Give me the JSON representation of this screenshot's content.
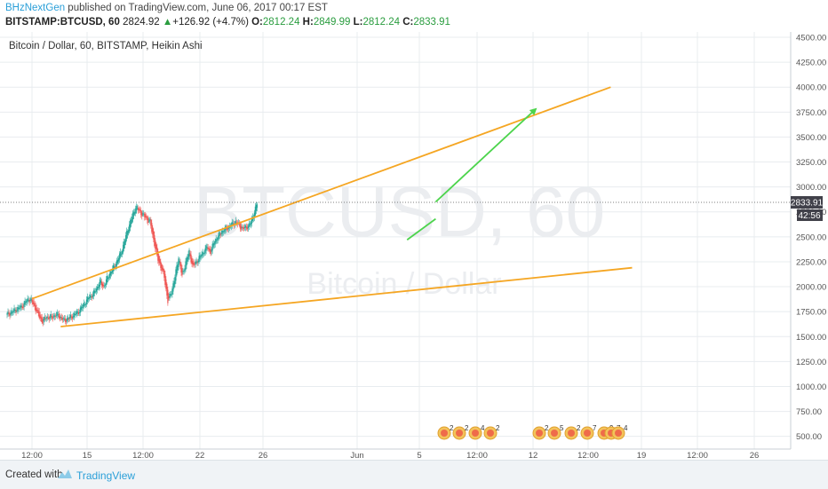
{
  "header": {
    "author": "BHzNextGen",
    "published_text": " published on TradingView.com, June 06, 2017 00:17 EST",
    "symbol": "BITSTAMP:BTCUSD, 60",
    "last": "2824.92",
    "change": "+126.92 (+4.7%)",
    "change_arrow": "▲",
    "o_label": "O:",
    "o_value": "2812.24",
    "h_label": "H:",
    "h_value": "2849.99",
    "l_label": "L:",
    "l_value": "2812.24",
    "c_label": "C:",
    "c_value": "2833.91"
  },
  "footer": {
    "created_with": "Created with",
    "brand": "TradingView"
  },
  "chart_data": {
    "type": "line",
    "title": "Bitcoin / Dollar, 60, BITSTAMP, Heikin Ashi",
    "watermark_main": "BTCUSD, 60",
    "watermark_sub": "Bitcoin / Dollar",
    "y_ticks": [
      500,
      750,
      1000,
      1250,
      1500,
      1750,
      2000,
      2250,
      2500,
      2750,
      3000,
      3250,
      3500,
      3750,
      4000,
      4250,
      4500
    ],
    "ylim": [
      400,
      4500
    ],
    "x_ticks": [
      "12:00",
      "15",
      "12:00",
      "22",
      "26",
      "Jun",
      "5",
      "12:00",
      "12",
      "12:00",
      "19",
      "12:00",
      "26"
    ],
    "price_label": "2833.91",
    "time_label": "42:56",
    "price_series": {
      "name": "BTCUSD",
      "x": [
        0,
        2,
        4,
        6,
        7,
        8,
        9,
        10,
        11,
        12,
        14,
        16,
        18,
        20,
        21,
        22,
        23,
        24,
        25,
        26,
        27,
        28,
        29,
        30,
        32,
        34,
        36,
        38,
        40,
        42,
        44,
        45,
        46,
        47,
        48,
        49,
        50,
        51,
        52,
        54,
        56,
        57,
        58,
        60,
        62,
        64,
        66,
        68,
        70
      ],
      "y": [
        1720,
        1760,
        1800,
        1880,
        1850,
        1780,
        1700,
        1650,
        1700,
        1690,
        1720,
        1660,
        1700,
        1750,
        1800,
        1850,
        1900,
        1920,
        1980,
        2050,
        2000,
        2080,
        2150,
        2200,
        2350,
        2600,
        2800,
        2720,
        2650,
        2300,
        2100,
        1850,
        1950,
        2100,
        2300,
        2100,
        2250,
        2350,
        2200,
        2300,
        2400,
        2350,
        2450,
        2550,
        2600,
        2650,
        2580,
        2620,
        2834
      ]
    },
    "trend_lines": [
      {
        "name": "upper-resistance",
        "color": "#f5a623",
        "points": [
          [
            7,
            1880
          ],
          [
            169,
            4000
          ]
        ]
      },
      {
        "name": "lower-support",
        "color": "#f5a623",
        "points": [
          [
            15,
            1600
          ],
          [
            175,
            2190
          ]
        ]
      },
      {
        "name": "projection-arrow",
        "color": "#4cd44c",
        "points": [
          [
            120,
            2850
          ],
          [
            148,
            3780
          ]
        ]
      },
      {
        "name": "small-uptrend",
        "color": "#4cd44c",
        "points": [
          [
            112,
            2470
          ],
          [
            120,
            2680
          ]
        ]
      }
    ],
    "event_markers": [
      {
        "name": "earnings-1",
        "label": "2"
      },
      {
        "name": "earnings-2",
        "label": "2"
      },
      {
        "name": "earnings-3",
        "label": "4"
      },
      {
        "name": "earnings-4",
        "label": "2"
      },
      {
        "name": "earnings-5",
        "label": "2"
      },
      {
        "name": "earnings-6",
        "label": "5"
      },
      {
        "name": "earnings-7",
        "label": "2"
      },
      {
        "name": "earnings-8",
        "label": "7"
      },
      {
        "name": "earnings-9",
        "label": "9"
      },
      {
        "name": "earnings-10",
        "label": "7"
      },
      {
        "name": "earnings-11",
        "label": "4"
      }
    ],
    "colors": {
      "up": "#26a69a",
      "down": "#ef5350",
      "trend": "#f5a623",
      "arrow": "#4cd44c",
      "grid": "#e8ecef"
    },
    "grid": true
  }
}
